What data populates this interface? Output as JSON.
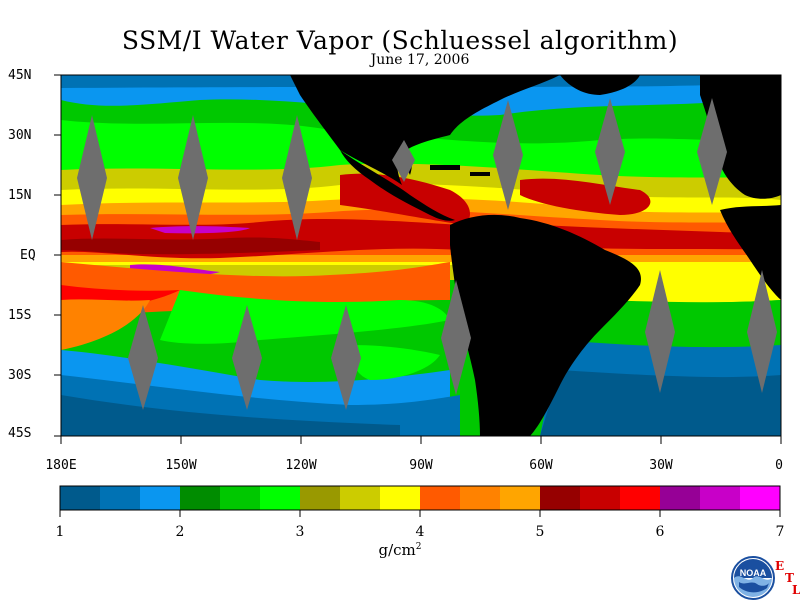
{
  "title": "SSM/I Water Vapor (Schluessel algorithm)",
  "subtitle": "June 17, 2006",
  "map": {
    "lat_labels": [
      "45N",
      "30N",
      "15N",
      "EQ",
      "15S",
      "30S",
      "45S"
    ],
    "lon_labels": [
      "180E",
      "150W",
      "120W",
      "90W",
      "60W",
      "30W",
      "0"
    ],
    "land_color": "#000000",
    "swath_gap_color": "#6e6e6e"
  },
  "colorbar": {
    "colors": [
      "#005a8c",
      "#0072b4",
      "#0a96f0",
      "#008c00",
      "#00c800",
      "#00ff00",
      "#999900",
      "#cccc00",
      "#ffff00",
      "#ff5a00",
      "#ff8200",
      "#ffa500",
      "#960000",
      "#c80000",
      "#ff0000",
      "#960096",
      "#c800c8",
      "#ff00ff"
    ],
    "tick_labels": [
      "1",
      "2",
      "3",
      "4",
      "5",
      "6",
      "7"
    ],
    "units": "g/cm",
    "units_superscript": "2"
  },
  "logo": {
    "name": "NOAA",
    "etl": [
      "E",
      "T",
      "L"
    ]
  }
}
